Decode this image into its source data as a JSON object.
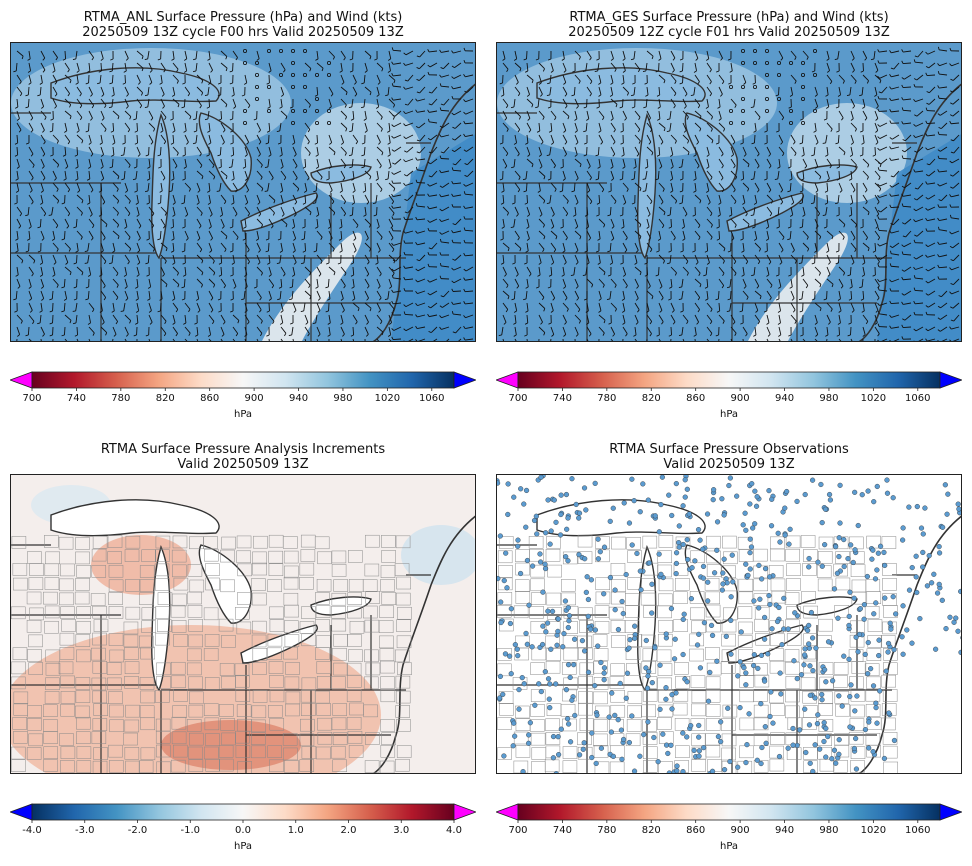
{
  "panels": {
    "anl": {
      "title_line1": "RTMA_ANL Surface Pressure (hPa) and Wind (kts)",
      "title_line2": "20250509 13Z cycle F00 hrs Valid 20250509 13Z"
    },
    "ges": {
      "title_line1": "RTMA_GES Surface Pressure (hPa) and Wind (kts)",
      "title_line2": "20250509 12Z cycle F01 hrs Valid 20250509 13Z"
    },
    "inc": {
      "title_line1": "RTMA Surface Pressure Analysis Increments",
      "title_line2": "Valid 20250509 13Z"
    },
    "obs": {
      "title_line1": "RTMA Surface Pressure Observations",
      "title_line2": "Valid 20250509 13Z"
    }
  },
  "colorbars": {
    "pressure": {
      "ticks": [
        "700",
        "740",
        "780",
        "820",
        "860",
        "900",
        "940",
        "980",
        "1020",
        "1060"
      ],
      "range": [
        700,
        1080
      ],
      "label": "hPa",
      "under_color": "#ff00ff",
      "over_color": "#0000ff"
    },
    "increment": {
      "ticks": [
        "-4.0",
        "-3.0",
        "-2.0",
        "-1.0",
        "0.0",
        "1.0",
        "2.0",
        "3.0",
        "4.0"
      ],
      "range": [
        -4,
        4
      ],
      "label": "hPa",
      "under_color": "#0000ff",
      "over_color": "#ff00ff"
    }
  },
  "colors": {
    "map_ocean": "#4a90c8",
    "map_land": "#5d9acb",
    "increment_positive": "#e8876a",
    "obs_marker": "#5b9bd0"
  }
}
